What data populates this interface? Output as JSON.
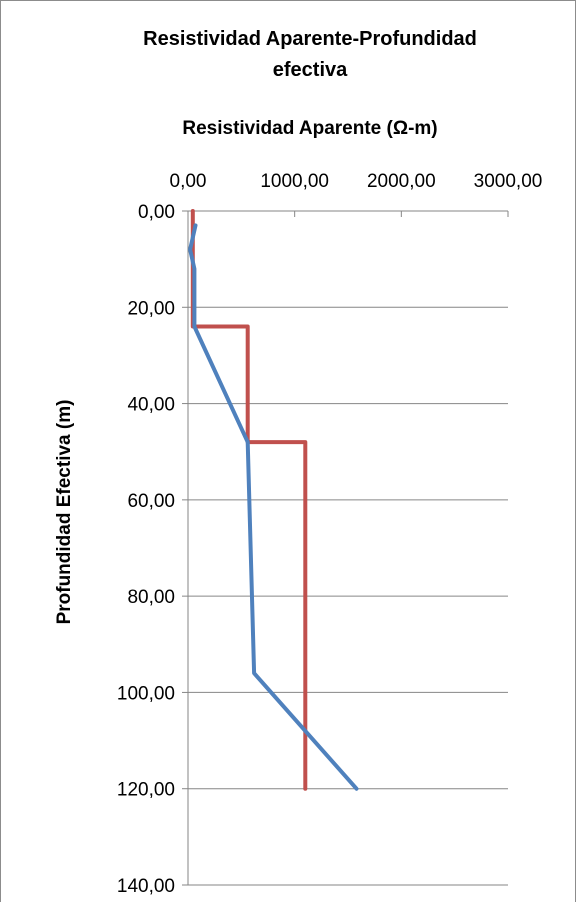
{
  "chart_data": {
    "type": "line",
    "title": "Resistividad Aparente-Profundidad efectiva",
    "title_lines": [
      "Resistividad Aparente-Profundidad",
      "efectiva"
    ],
    "xlabel": "Resistividad Aparente (Ω-m)",
    "ylabel": "Profundidad Efectiva (m)",
    "x_axis_position": "top",
    "y_axis_inverted": true,
    "xlim": [
      0,
      3000
    ],
    "ylim": [
      0,
      140
    ],
    "x_ticks": [
      0,
      1000,
      2000,
      3000
    ],
    "y_ticks": [
      0,
      20,
      40,
      60,
      80,
      100,
      120,
      140
    ],
    "x_tick_labels": [
      "0,00",
      "1000,00",
      "2000,00",
      "3000,00"
    ],
    "y_tick_labels": [
      "0,00",
      "20,00",
      "40,00",
      "60,00",
      "80,00",
      "100,00",
      "120,00",
      "140,00"
    ],
    "grid": true,
    "legend": "none",
    "series": [
      {
        "color": "#c0504d",
        "x": [
          45,
          45,
          560,
          560,
          1100,
          1100
        ],
        "y": [
          0,
          24,
          24,
          48,
          48,
          120
        ]
      },
      {
        "color": "#4f81bd",
        "x": [
          70,
          20,
          60,
          60,
          560,
          620,
          1580
        ],
        "y": [
          3,
          8,
          12,
          24,
          48,
          96,
          120
        ]
      }
    ]
  }
}
